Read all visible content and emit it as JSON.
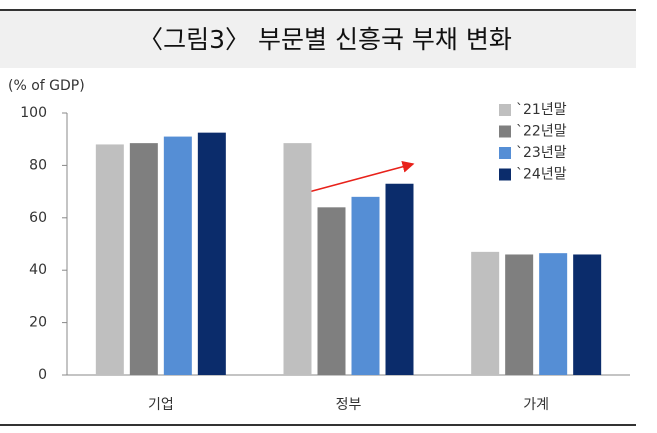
{
  "chart_data": {
    "type": "bar",
    "title": "〈그림3〉 부문별 신흥국 부채 변화",
    "y_axis_label": "(% of GDP)",
    "categories": [
      "기업",
      "정부",
      "가계"
    ],
    "series": [
      {
        "name": "`21년말",
        "color": "#bfbfbf",
        "values": [
          88,
          88.5,
          47
        ]
      },
      {
        "name": "`22년말",
        "color": "#7f7f7f",
        "values": [
          88.5,
          64,
          46
        ]
      },
      {
        "name": "`23년말",
        "color": "#558ed5",
        "values": [
          91,
          68,
          46.5
        ]
      },
      {
        "name": "`24년말",
        "color": "#0b2c6b",
        "values": [
          92.5,
          73,
          46
        ]
      }
    ],
    "ylim": [
      0,
      100
    ],
    "yticks": [
      0,
      20,
      40,
      60,
      80,
      100
    ],
    "grid": false,
    "legend": "upper right"
  }
}
